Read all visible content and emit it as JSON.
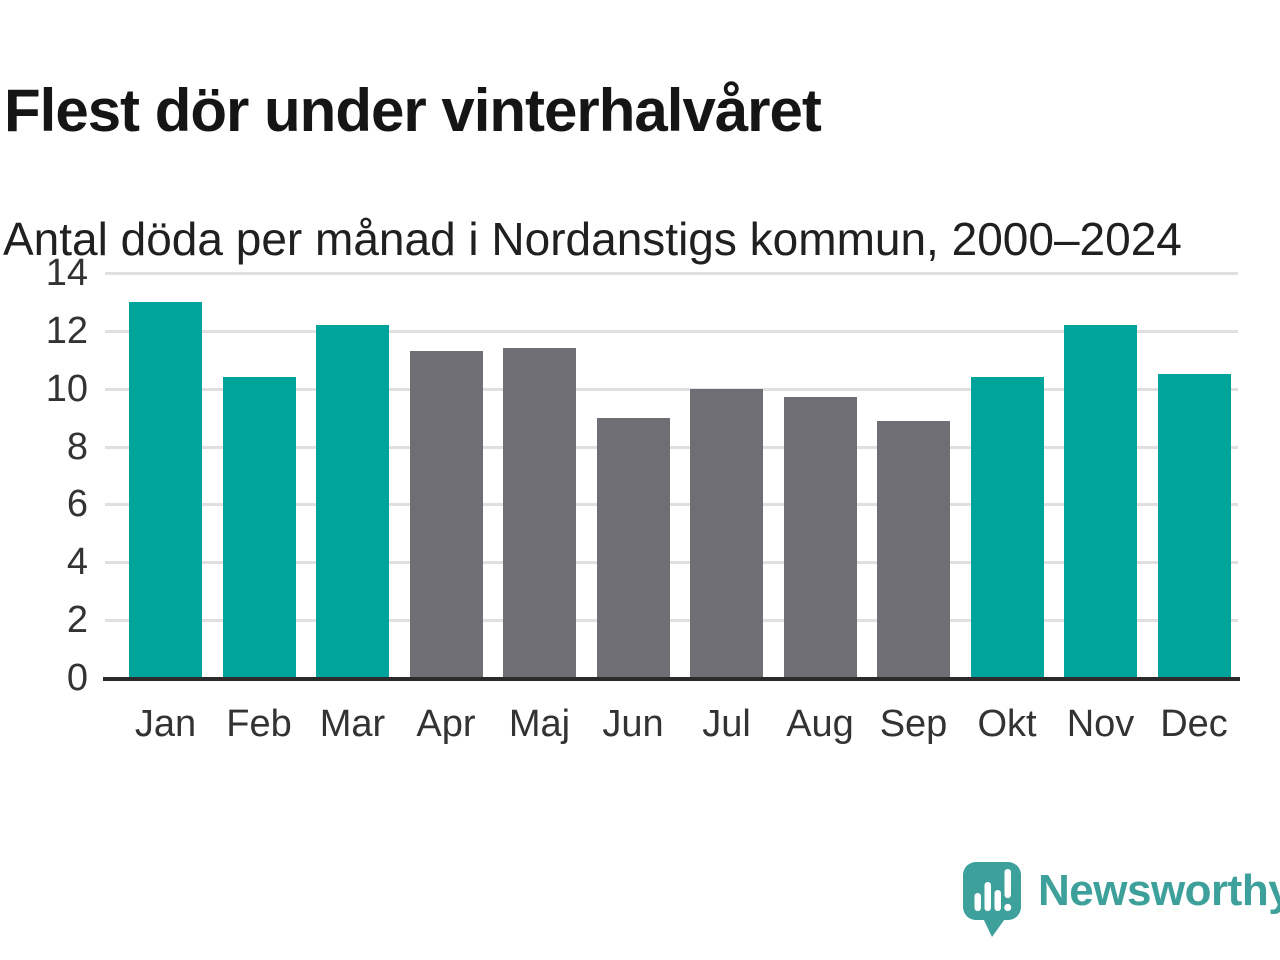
{
  "title": "Flest dör under vinterhalvåret",
  "subtitle": "Antal döda per månad i Nordanstigs kommun, 2000–2024",
  "chart_data": {
    "type": "bar",
    "title": "Flest dör under vinterhalvåret",
    "subtitle": "Antal döda per månad i Nordanstigs kommun, 2000–2024",
    "categories": [
      "Jan",
      "Feb",
      "Mar",
      "Apr",
      "Maj",
      "Jun",
      "Jul",
      "Aug",
      "Sep",
      "Okt",
      "Nov",
      "Dec"
    ],
    "values": [
      13.0,
      10.4,
      12.2,
      11.3,
      11.4,
      9.0,
      10.0,
      9.7,
      8.9,
      10.4,
      12.2,
      10.5
    ],
    "bar_groups": [
      "winter",
      "winter",
      "winter",
      "summer",
      "summer",
      "summer",
      "summer",
      "summer",
      "summer",
      "winter",
      "winter",
      "winter"
    ],
    "palette": {
      "winter": "#00a49a",
      "summer": "#6f6e74"
    },
    "xlabel": "",
    "ylabel": "",
    "ylim": [
      0,
      14
    ],
    "yticks": [
      0,
      2,
      4,
      6,
      8,
      10,
      12,
      14
    ],
    "grid": "horizontal",
    "legend": "none",
    "gridline_color": "#e0e0e0",
    "axis_line_color": "#2b2b2b",
    "tick_label_color": "#333333"
  },
  "footer": {
    "brand_name": "Newsworthy",
    "brand_color": "#3da09a",
    "logo_icon": "speech-bubble-bar-chart-exclamation-icon"
  }
}
